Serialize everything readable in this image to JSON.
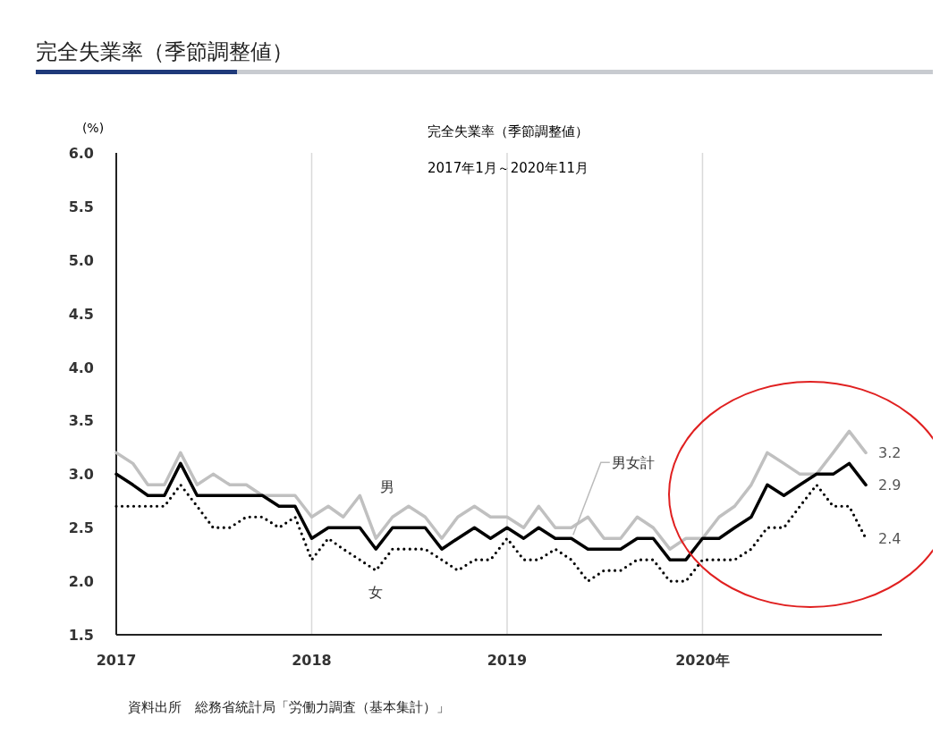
{
  "chart_data": {
    "type": "line",
    "title": "完全失業率（季節調整値）",
    "subtitle": "2017年1月～2020年11月",
    "ylabel": "(%)",
    "annotations": [
      "完全失業率（季節調整値）",
      "資料出所　総務省統計局「労働力調査（基本集計）」"
    ],
    "xlim": [
      "2017-01",
      "2020-12"
    ],
    "xticks": [
      {
        "value": "2017",
        "label": "2017"
      },
      {
        "value": "2018",
        "label": "2018"
      },
      {
        "value": "2019",
        "label": "2019"
      },
      {
        "value": "2020",
        "label": "2020年"
      }
    ],
    "ylim": [
      1.5,
      6.0
    ],
    "yticks": [
      {
        "value": 1.5,
        "label": "1.5"
      },
      {
        "value": 2.0,
        "label": "2.0"
      },
      {
        "value": 2.5,
        "label": "2.5"
      },
      {
        "value": 3.0,
        "label": "3.0"
      },
      {
        "value": 3.5,
        "label": "3.5"
      },
      {
        "value": 4.0,
        "label": "4.0"
      },
      {
        "value": 4.5,
        "label": "4.5"
      },
      {
        "value": 5.0,
        "label": "5.0"
      },
      {
        "value": 5.5,
        "label": "5.5"
      },
      {
        "value": 6.0,
        "label": "6.0"
      }
    ],
    "grid": "x",
    "legend": false,
    "marker": "none",
    "x": [
      "2017-01",
      "2017-02",
      "2017-03",
      "2017-04",
      "2017-05",
      "2017-06",
      "2017-07",
      "2017-08",
      "2017-09",
      "2017-10",
      "2017-11",
      "2017-12",
      "2018-01",
      "2018-02",
      "2018-03",
      "2018-04",
      "2018-05",
      "2018-06",
      "2018-07",
      "2018-08",
      "2018-09",
      "2018-10",
      "2018-11",
      "2018-12",
      "2019-01",
      "2019-02",
      "2019-03",
      "2019-04",
      "2019-05",
      "2019-06",
      "2019-07",
      "2019-08",
      "2019-09",
      "2019-10",
      "2019-11",
      "2019-12",
      "2020-01",
      "2020-02",
      "2020-03",
      "2020-04",
      "2020-05",
      "2020-06",
      "2020-07",
      "2020-08",
      "2020-09",
      "2020-10",
      "2020-11"
    ],
    "series": [
      {
        "name": "男",
        "color": "#c0c0c0",
        "line_style": "solid",
        "values": [
          3.2,
          3.1,
          2.9,
          2.9,
          3.2,
          2.9,
          3.0,
          2.9,
          2.9,
          2.8,
          2.8,
          2.8,
          2.6,
          2.7,
          2.6,
          2.8,
          2.4,
          2.6,
          2.7,
          2.6,
          2.4,
          2.6,
          2.7,
          2.6,
          2.6,
          2.5,
          2.7,
          2.5,
          2.5,
          2.6,
          2.4,
          2.4,
          2.6,
          2.5,
          2.3,
          2.4,
          2.4,
          2.6,
          2.7,
          2.9,
          3.2,
          3.1,
          3.0,
          3.0,
          3.2,
          3.4,
          3.2
        ],
        "value_labels": [
          null,
          null,
          null,
          null,
          null,
          null,
          null,
          null,
          null,
          null,
          null,
          null,
          null,
          null,
          null,
          null,
          null,
          null,
          null,
          null,
          null,
          null,
          null,
          null,
          null,
          null,
          null,
          null,
          null,
          null,
          null,
          null,
          null,
          null,
          null,
          null,
          null,
          null,
          null,
          null,
          null,
          null,
          null,
          null,
          null,
          null,
          "3.2"
        ]
      },
      {
        "name": "男女計",
        "color": "#000000",
        "line_style": "solid",
        "values": [
          3.0,
          2.9,
          2.8,
          2.8,
          3.1,
          2.8,
          2.8,
          2.8,
          2.8,
          2.8,
          2.7,
          2.7,
          2.4,
          2.5,
          2.5,
          2.5,
          2.3,
          2.5,
          2.5,
          2.5,
          2.3,
          2.4,
          2.5,
          2.4,
          2.5,
          2.4,
          2.5,
          2.4,
          2.4,
          2.3,
          2.3,
          2.3,
          2.4,
          2.4,
          2.2,
          2.2,
          2.4,
          2.4,
          2.5,
          2.6,
          2.9,
          2.8,
          2.9,
          3.0,
          3.0,
          3.1,
          2.9
        ],
        "value_labels": [
          null,
          null,
          null,
          null,
          null,
          null,
          null,
          null,
          null,
          null,
          null,
          null,
          null,
          null,
          null,
          null,
          null,
          null,
          null,
          null,
          null,
          null,
          null,
          null,
          null,
          null,
          null,
          null,
          null,
          null,
          null,
          null,
          null,
          null,
          null,
          null,
          null,
          null,
          null,
          null,
          null,
          null,
          null,
          null,
          null,
          null,
          "2.9"
        ]
      },
      {
        "name": "女",
        "color": "#000000",
        "line_style": "dotted",
        "values": [
          2.7,
          2.7,
          2.7,
          2.7,
          2.9,
          2.7,
          2.5,
          2.5,
          2.6,
          2.6,
          2.5,
          2.6,
          2.2,
          2.4,
          2.3,
          2.2,
          2.1,
          2.3,
          2.3,
          2.3,
          2.2,
          2.1,
          2.2,
          2.2,
          2.4,
          2.2,
          2.2,
          2.3,
          2.2,
          2.0,
          2.1,
          2.1,
          2.2,
          2.2,
          2.0,
          2.0,
          2.2,
          2.2,
          2.2,
          2.3,
          2.5,
          2.5,
          2.7,
          2.9,
          2.7,
          2.7,
          2.4
        ],
        "value_labels": [
          null,
          null,
          null,
          null,
          null,
          null,
          null,
          null,
          null,
          null,
          null,
          null,
          null,
          null,
          null,
          null,
          null,
          null,
          null,
          null,
          null,
          null,
          null,
          null,
          null,
          null,
          null,
          null,
          null,
          null,
          null,
          null,
          null,
          null,
          null,
          null,
          null,
          null,
          null,
          null,
          null,
          null,
          null,
          null,
          null,
          null,
          "2.4"
        ]
      }
    ]
  }
}
